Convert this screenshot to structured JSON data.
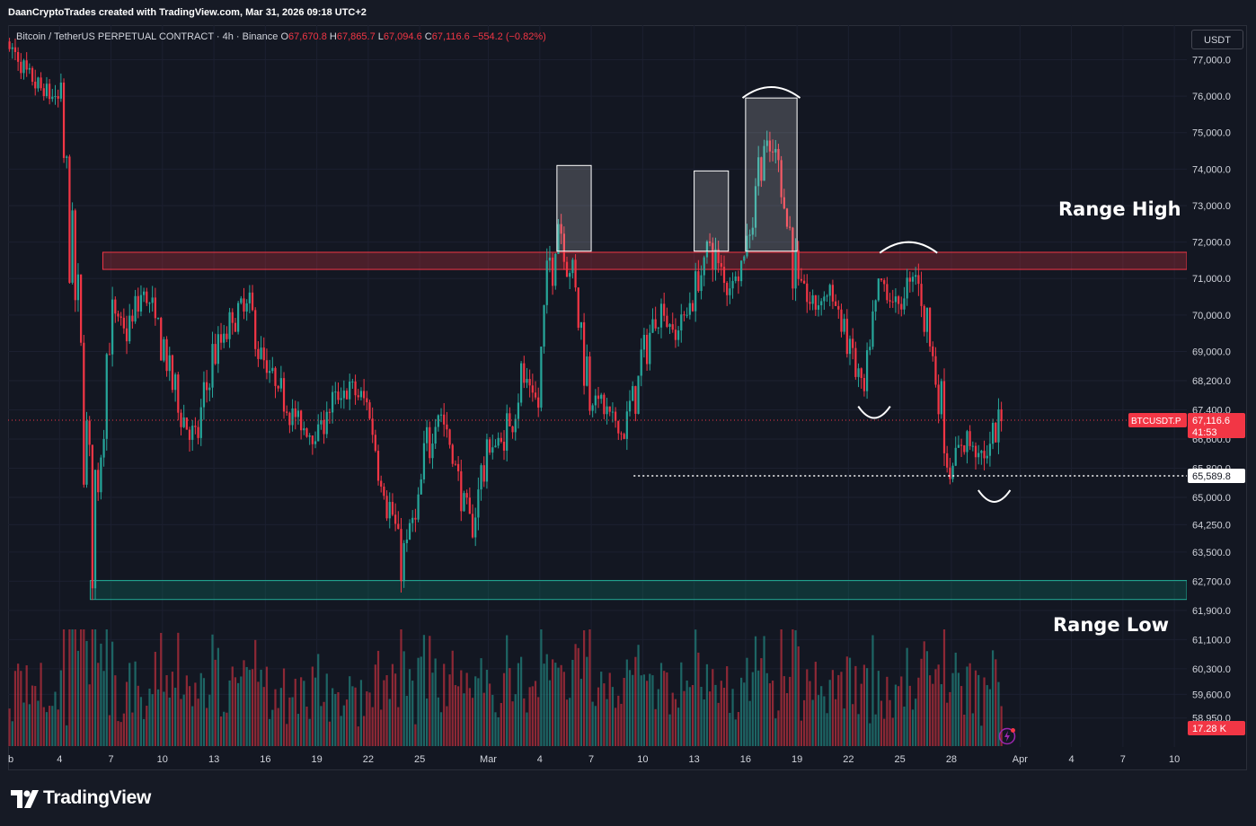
{
  "header": {
    "caption": "DaanCryptoTrades created with TradingView.com, Mar 31, 2026 09:18 UTC+2"
  },
  "legend": {
    "symbol": "Bitcoin / TetherUS PERPETUAL CONTRACT · 4h · Binance",
    "o_label": "O",
    "o_value": "67,670.8",
    "h_label": "H",
    "h_value": "67,865.7",
    "l_label": "L",
    "l_value": "67,094.6",
    "c_label": "C",
    "c_value": "67,116.6",
    "change": "−554.2 (−0.82%)"
  },
  "currency_button": "USDT",
  "annotations": {
    "range_high": "Range High",
    "range_low": "Range Low"
  },
  "footer": {
    "brand": "TradingView"
  },
  "colors": {
    "up": "#26a69a",
    "down": "#f23645",
    "background": "#131722",
    "range_high_zone": "#f23645",
    "range_low_zone": "#089981",
    "last_price_badge": "#f23645"
  },
  "chart_data": {
    "type": "candlestick",
    "title": "Bitcoin / TetherUS PERPETUAL CONTRACT · 4h · Binance",
    "xlabel": "",
    "ylabel": "",
    "ylim": [
      58500,
      77800
    ],
    "y_ticks": [
      "77,000.0",
      "76,000.0",
      "75,000.0",
      "74,000.0",
      "73,000.0",
      "72,000.0",
      "71,000.0",
      "70,000.0",
      "69,000.0",
      "68,200.0",
      "67,400.0",
      "66,600.0",
      "65,800.0",
      "65,000.0",
      "64,250.0",
      "63,500.0",
      "62,700.0",
      "61,900.0",
      "61,100.0",
      "60,300.0",
      "59,600.0",
      "58,950.0"
    ],
    "x_ticks": [
      "eb",
      "4",
      "7",
      "10",
      "13",
      "16",
      "19",
      "22",
      "25",
      "Mar",
      "4",
      "7",
      "10",
      "13",
      "16",
      "19",
      "22",
      "25",
      "28",
      "Apr",
      "4",
      "7",
      "10"
    ],
    "x_tick_dates": [
      "2026-02-01",
      "2026-02-04",
      "2026-02-07",
      "2026-02-10",
      "2026-02-13",
      "2026-02-16",
      "2026-02-19",
      "2026-02-22",
      "2026-02-25",
      "2026-03-01",
      "2026-03-04",
      "2026-03-07",
      "2026-03-10",
      "2026-03-13",
      "2026-03-16",
      "2026-03-19",
      "2026-03-22",
      "2026-03-25",
      "2026-03-28",
      "2026-04-01",
      "2026-04-04",
      "2026-04-07",
      "2026-04-10"
    ],
    "price_path_daily_close": [
      {
        "date": "2026-02-01",
        "close": 77500
      },
      {
        "date": "2026-02-02",
        "close": 76600
      },
      {
        "date": "2026-02-03",
        "close": 76200
      },
      {
        "date": "2026-02-04",
        "close": 75900
      },
      {
        "date": "2026-02-05",
        "close": 70500
      },
      {
        "date": "2026-02-06",
        "close": 64000
      },
      {
        "date": "2026-02-07",
        "close": 70200
      },
      {
        "date": "2026-02-08",
        "close": 69500
      },
      {
        "date": "2026-02-09",
        "close": 70700
      },
      {
        "date": "2026-02-10",
        "close": 69300
      },
      {
        "date": "2026-02-11",
        "close": 67500
      },
      {
        "date": "2026-02-12",
        "close": 66500
      },
      {
        "date": "2026-02-13",
        "close": 68800
      },
      {
        "date": "2026-02-14",
        "close": 69700
      },
      {
        "date": "2026-02-15",
        "close": 70400
      },
      {
        "date": "2026-02-16",
        "close": 68600
      },
      {
        "date": "2026-02-17",
        "close": 67900
      },
      {
        "date": "2026-02-18",
        "close": 67000
      },
      {
        "date": "2026-02-19",
        "close": 66700
      },
      {
        "date": "2026-02-20",
        "close": 67600
      },
      {
        "date": "2026-02-21",
        "close": 68000
      },
      {
        "date": "2026-02-22",
        "close": 67600
      },
      {
        "date": "2026-02-23",
        "close": 65400
      },
      {
        "date": "2026-02-24",
        "close": 63300
      },
      {
        "date": "2026-02-25",
        "close": 64700
      },
      {
        "date": "2026-02-26",
        "close": 67800
      },
      {
        "date": "2026-02-27",
        "close": 66200
      },
      {
        "date": "2026-02-28",
        "close": 64000
      },
      {
        "date": "2026-03-01",
        "close": 66400
      },
      {
        "date": "2026-03-02",
        "close": 66500
      },
      {
        "date": "2026-03-03",
        "close": 68300
      },
      {
        "date": "2026-03-04",
        "close": 67500
      },
      {
        "date": "2026-03-05",
        "close": 73100
      },
      {
        "date": "2026-03-06",
        "close": 71000
      },
      {
        "date": "2026-03-07",
        "close": 68000
      },
      {
        "date": "2026-03-08",
        "close": 67300
      },
      {
        "date": "2026-03-09",
        "close": 66700
      },
      {
        "date": "2026-03-10",
        "close": 68600
      },
      {
        "date": "2026-03-11",
        "close": 70300
      },
      {
        "date": "2026-03-12",
        "close": 69500
      },
      {
        "date": "2026-03-13",
        "close": 70500
      },
      {
        "date": "2026-03-14",
        "close": 71900
      },
      {
        "date": "2026-03-15",
        "close": 70800
      },
      {
        "date": "2026-03-16",
        "close": 71500
      },
      {
        "date": "2026-03-17",
        "close": 74600
      },
      {
        "date": "2026-03-18",
        "close": 74300
      },
      {
        "date": "2026-03-19",
        "close": 71100
      },
      {
        "date": "2026-03-20",
        "close": 70200
      },
      {
        "date": "2026-03-21",
        "close": 70700
      },
      {
        "date": "2026-03-22",
        "close": 69300
      },
      {
        "date": "2026-03-23",
        "close": 67700
      },
      {
        "date": "2026-03-24",
        "close": 70800
      },
      {
        "date": "2026-03-25",
        "close": 70200
      },
      {
        "date": "2026-03-26",
        "close": 71200
      },
      {
        "date": "2026-03-27",
        "close": 69000
      },
      {
        "date": "2026-03-28",
        "close": 65900
      },
      {
        "date": "2026-03-29",
        "close": 66600
      },
      {
        "date": "2026-03-30",
        "close": 66100
      },
      {
        "date": "2026-03-31",
        "close": 67116.6
      }
    ],
    "range_high_zone": [
      71250,
      71720
    ],
    "range_low_zone": [
      62200,
      62720
    ],
    "swept_low_line": 65589.8,
    "swept_low_start": "2026-03-09",
    "highlight_boxes": [
      {
        "from": "2026-03-05",
        "to": "2026-03-06",
        "low": 71750,
        "high": 74100
      },
      {
        "from": "2026-03-13",
        "to": "2026-03-14",
        "low": 71750,
        "high": 73950
      },
      {
        "from": "2026-03-16",
        "to": "2026-03-18",
        "low": 71750,
        "high": 75950
      }
    ],
    "arc_marks": [
      {
        "date": "2026-03-17",
        "price": 76150,
        "direction": "top"
      },
      {
        "date": "2026-03-25",
        "price": 71900,
        "direction": "top"
      },
      {
        "date": "2026-03-23",
        "price": 67300,
        "direction": "bottom"
      },
      {
        "date": "2026-03-30",
        "price": 65000,
        "direction": "bottom"
      }
    ],
    "last_price": {
      "ticker": "BTCUSDT.P",
      "value": "67,116.6",
      "countdown": "41:53"
    },
    "swept_low_label": "65,589.8",
    "volume_label": "17.28 K"
  }
}
